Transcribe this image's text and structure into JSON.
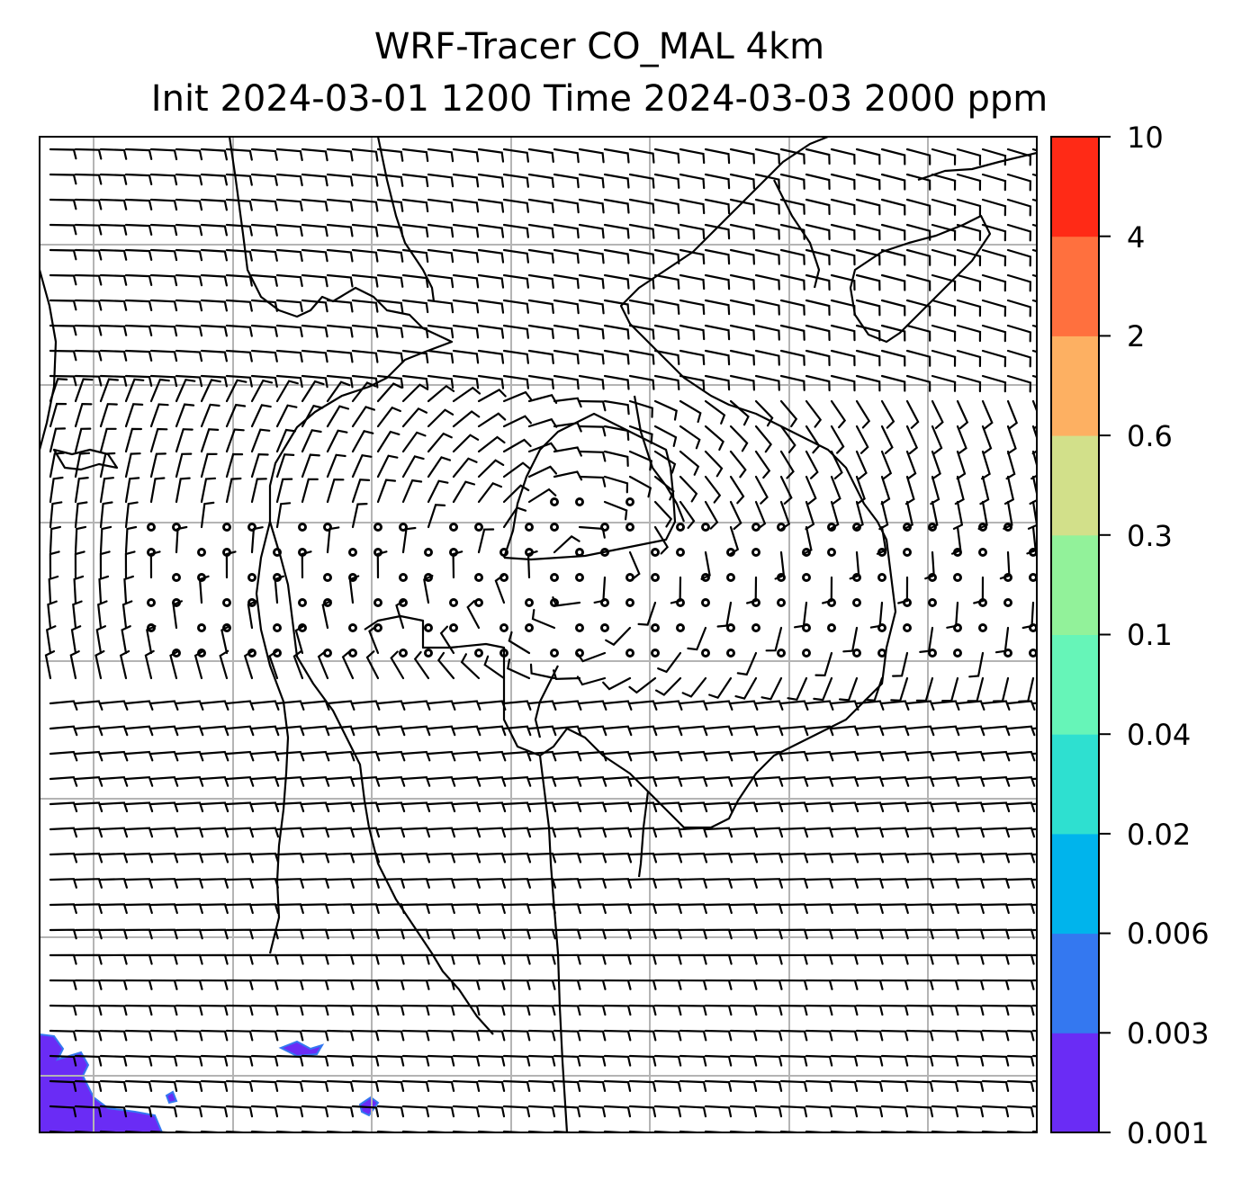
{
  "title": {
    "line1": "WRF-Tracer CO_MAL 4km",
    "line2": "Init 2024-03-01 1200 Time 2024-03-03 2000 ppm"
  },
  "colorbar": {
    "levels": [
      "0.001",
      "0.003",
      "0.006",
      "0.02",
      "0.04",
      "0.1",
      "0.3",
      "0.6",
      "2",
      "4",
      "10"
    ],
    "colors": [
      "#6a2cf5",
      "#3478f0",
      "#00b4ec",
      "#2ee0d0",
      "#66f5b8",
      "#92f29a",
      "#d2e08a",
      "#fdb062",
      "#ff703e",
      "#ff2a16"
    ]
  },
  "map": {
    "field_name": "CO_MAL tracer",
    "units": "ppm",
    "plume_color": "#6a2cf5",
    "plume_outline_color": "#3478f0",
    "gridline_color": "#b4b4b4",
    "coastline_color": "#000000",
    "barb_color": "#000000",
    "gridlines": true
  }
}
